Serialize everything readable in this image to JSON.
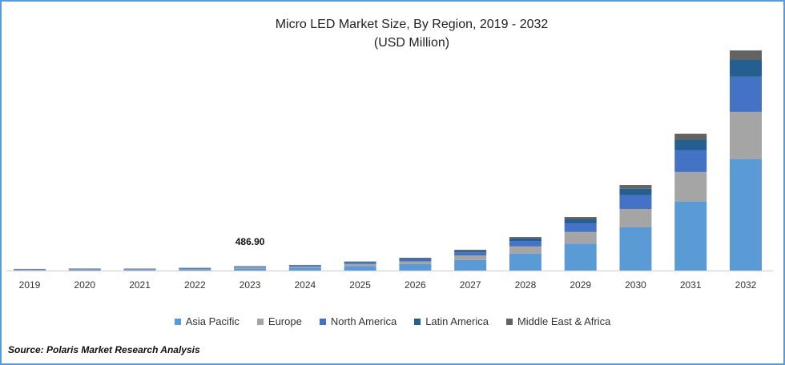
{
  "chart_data": {
    "type": "bar",
    "stacked": true,
    "title": "Micro LED Market Size, By Region, 2019 - 2032",
    "subtitle": "(USD Million)",
    "xlabel": "",
    "ylabel": "",
    "grid": false,
    "legend_position": "bottom",
    "categories": [
      "2019",
      "2020",
      "2021",
      "2022",
      "2023",
      "2024",
      "2025",
      "2026",
      "2027",
      "2028",
      "2029",
      "2030",
      "2031",
      "2032"
    ],
    "series": [
      {
        "name": "Asia Pacific",
        "color": "#5b9bd5",
        "values": [
          46,
          91,
          86,
          136,
          245.9,
          323,
          525,
          742,
          1207,
          1949,
          3111,
          4969,
          7944,
          12788
        ]
      },
      {
        "name": "Europe",
        "color": "#a5a5a5",
        "values": [
          19,
          39,
          37,
          58,
          104.7,
          138,
          224,
          316,
          514,
          830,
          1324,
          2116,
          3382,
          5440
        ]
      },
      {
        "name": "North America",
        "color": "#4472c4",
        "values": [
          14,
          29,
          27,
          43,
          77.9,
          102,
          166,
          235,
          382,
          618,
          986,
          1574,
          2517,
          4048
        ]
      },
      {
        "name": "Latin America",
        "color": "#255e91",
        "values": [
          7,
          14,
          13,
          21,
          37,
          49,
          79,
          112,
          182,
          293,
          468,
          748,
          1195,
          1920
        ]
      },
      {
        "name": "Middle East & Africa",
        "color": "#636363",
        "values": [
          4,
          7,
          7,
          12,
          21.4,
          28,
          46,
          65,
          105,
          170,
          271,
          433,
          692,
          1104
        ]
      }
    ],
    "annotations": [
      {
        "category": "2023",
        "text": "486.90"
      }
    ]
  },
  "source": "Source: Polaris  Market Research Analysis"
}
